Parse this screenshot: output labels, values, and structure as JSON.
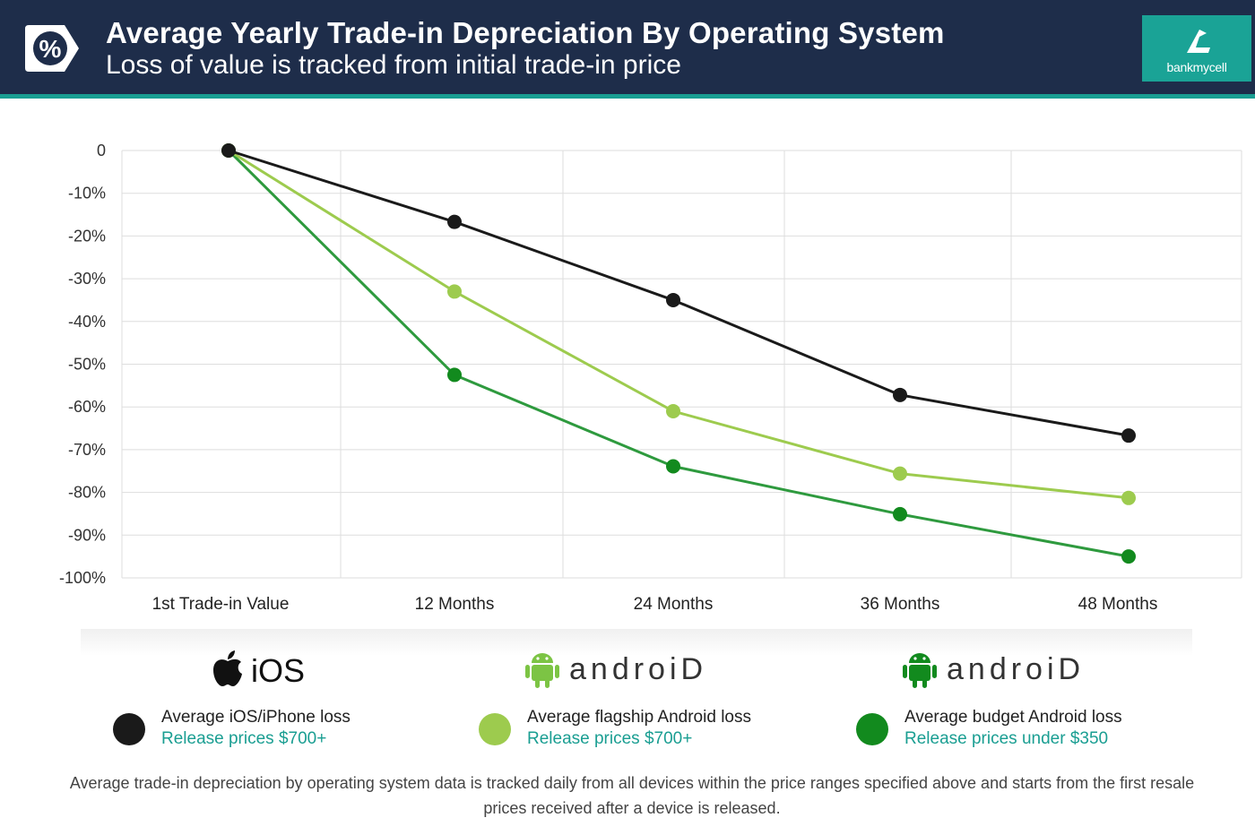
{
  "header": {
    "title": "Average Yearly Trade-in Depreciation By Operating System",
    "subtitle": "Loss of value is tracked from initial trade-in price",
    "badge_icon": "percent-tag-icon",
    "brand": "bankmycell",
    "brand_icon": "bankmycell-logo-icon"
  },
  "colors": {
    "header_bg": "#1e2d4a",
    "accent": "#1a9e92",
    "ios": "#1a1a1a",
    "flagship": "#9dcb4e",
    "budget": "#2e9a3e",
    "budget_dot": "#128a1e"
  },
  "chart_data": {
    "type": "line",
    "title": "Average Yearly Trade-in Depreciation By Operating System",
    "categories": [
      "1st Trade-in Value",
      "12 Months",
      "24 Months",
      "36 Months",
      "48 Months"
    ],
    "ylim": [
      -100,
      0
    ],
    "yticks": [
      "0",
      "-10%",
      "-20%",
      "-30%",
      "-40%",
      "-50%",
      "-60%",
      "-70%",
      "-80%",
      "-90%",
      "-100%"
    ],
    "grid": true,
    "series": [
      {
        "name": "Average iOS/iPhone loss",
        "key": "ios",
        "values": [
          0,
          -16.7,
          -35,
          -57.2,
          -66.7
        ]
      },
      {
        "name": "Average flagship Android loss",
        "key": "flagship",
        "values": [
          0,
          -33,
          -61,
          -75.6,
          -81.3
        ]
      },
      {
        "name": "Average budget Android loss",
        "key": "budget",
        "values": [
          0,
          -52.5,
          -73.9,
          -85.1,
          -95
        ]
      }
    ]
  },
  "legend": {
    "os_labels": {
      "ios": "iOS",
      "android": "androiD",
      "apple_icon": "apple-icon",
      "android_icon": "android-robot-icon"
    },
    "items": [
      {
        "label": "Average iOS/iPhone loss",
        "sub": "Release prices $700+"
      },
      {
        "label": "Average flagship Android loss",
        "sub": "Release prices $700+"
      },
      {
        "label": "Average budget Android loss",
        "sub": "Release prices under $350"
      }
    ]
  },
  "footnote": "Average trade-in depreciation by operating system data is tracked daily from all devices within the price ranges specified above and starts from the first resale prices received after a device is released."
}
